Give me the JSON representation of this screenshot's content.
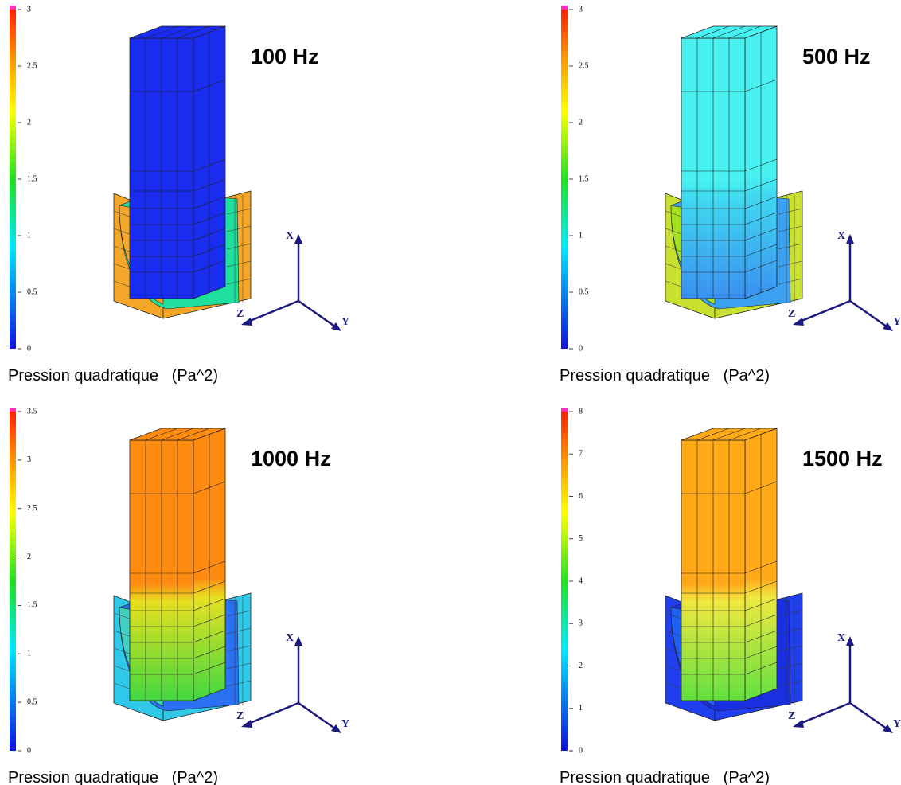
{
  "panels": [
    {
      "title": "100 Hz",
      "colorbar": {
        "ticks": [
          0,
          0.5,
          1,
          1.5,
          2,
          2.5,
          3
        ]
      },
      "caption": "Pression quadratique   (Pa^2)",
      "axes": {
        "x": "X",
        "y": "Y",
        "z": "Z"
      }
    },
    {
      "title": "500 Hz",
      "colorbar": {
        "ticks": [
          0,
          0.5,
          1,
          1.5,
          2,
          2.5,
          3
        ]
      },
      "caption": "Pression quadratique   (Pa^2)",
      "axes": {
        "x": "X",
        "y": "Y",
        "z": "Z"
      }
    },
    {
      "title": "1000 Hz",
      "colorbar": {
        "ticks": [
          0,
          0.5,
          1,
          1.5,
          2,
          2.5,
          3,
          3.5
        ]
      },
      "caption": "Pression quadratique   (Pa^2)",
      "axes": {
        "x": "X",
        "y": "Y",
        "z": "Z"
      }
    },
    {
      "title": "1500 Hz",
      "colorbar": {
        "ticks": [
          0,
          1,
          2,
          3,
          4,
          5,
          6,
          7,
          8
        ]
      },
      "caption": "Pression quadratique   (Pa^2)",
      "axes": {
        "x": "X",
        "y": "Y",
        "z": "Z"
      }
    }
  ]
}
